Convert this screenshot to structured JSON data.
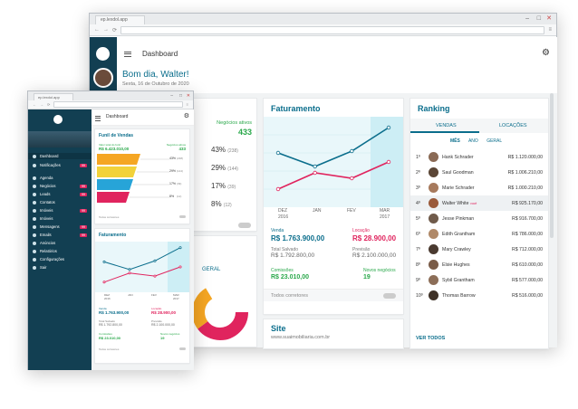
{
  "back_window": {
    "tab_label": "ep.lexdol.app",
    "header_title": "Dashboard",
    "greeting": "Bom dia, Walter!",
    "date": "Sexta, 16 de Outubro de 2020",
    "negocios": {
      "label": "Negócios ativos",
      "value": "433"
    },
    "funnel_rows": [
      {
        "pct": "43%",
        "count": "(238)"
      },
      {
        "pct": "29%",
        "count": "(144)"
      },
      {
        "pct": "17%",
        "count": "(39)"
      },
      {
        "pct": "8%",
        "count": "(12)"
      }
    ],
    "geral_tab": "GERAL",
    "faturamento": {
      "title": "Faturamento",
      "months": [
        "DEZ",
        "JAN",
        "FEV",
        "MAR"
      ],
      "years": [
        "2016",
        "",
        "",
        "2017"
      ],
      "venda_label": "Venda",
      "venda_value": "R$ 1.763.900,00",
      "locacao_label": "Locação",
      "locacao_value": "R$ 28.900,00",
      "total_label": "Total Salvado",
      "total_value": "R$ 1.792.800,00",
      "previsao_label": "Previsão",
      "previsao_value": "R$ 2.100.000,00",
      "comissoes_label": "Comissões",
      "comissoes_value": "R$ 23.010,00",
      "novos_label": "Novos negócios",
      "novos_value": "19",
      "corretores": "Todos corretores"
    },
    "site": {
      "title": "Site",
      "url": "www.suaimobiliaria.com.br"
    },
    "ranking": {
      "title": "Ranking",
      "tabs": [
        "VENDAS",
        "LOCAÇÕES"
      ],
      "periods": [
        "MÊS",
        "ANO",
        "GERAL"
      ],
      "rows": [
        {
          "pos": "1º",
          "name": "Hank Schrader",
          "value": "R$ 1.120.000,00"
        },
        {
          "pos": "2º",
          "name": "Saul Goodman",
          "value": "R$ 1.006.210,00"
        },
        {
          "pos": "3º",
          "name": "Marie Schrader",
          "value": "R$ 1.000.210,00"
        },
        {
          "pos": "4º",
          "name": "Walter White",
          "value": "R$ 925.170,00",
          "tag": "você"
        },
        {
          "pos": "5º",
          "name": "Jesse Pinkman",
          "value": "R$ 916.700,00"
        },
        {
          "pos": "6º",
          "name": "Edith Grantham",
          "value": "R$ 786.000,00"
        },
        {
          "pos": "7º",
          "name": "Mary Crawley",
          "value": "R$ 712.000,00"
        },
        {
          "pos": "8º",
          "name": "Elsie Hughes",
          "value": "R$ 610.000,00"
        },
        {
          "pos": "9º",
          "name": "Sybil Grantham",
          "value": "R$ 577.000,00"
        },
        {
          "pos": "10º",
          "name": "Thomas Barrow",
          "value": "R$ 516.000,00"
        }
      ],
      "ver_todos": "VER TODOS"
    }
  },
  "front_window": {
    "tab_label": "ep.lexdol.app",
    "header_title": "Dashboard",
    "menu": [
      {
        "label": "Dashboard"
      },
      {
        "label": "Notificações",
        "badge": "99"
      },
      {
        "label": "Agenda"
      },
      {
        "label": "Negócios",
        "badge": "99"
      },
      {
        "label": "Leads",
        "badge": "99"
      },
      {
        "label": "Contatos"
      },
      {
        "label": "Imóveis",
        "badge": "99"
      },
      {
        "label": "Imóveis"
      },
      {
        "label": "Mensagens",
        "badge": "99"
      },
      {
        "label": "Emails",
        "badge": "99"
      },
      {
        "label": "Anúncios"
      },
      {
        "label": "Relatórios"
      },
      {
        "label": "Configurações"
      },
      {
        "label": "Sair"
      }
    ],
    "funil": {
      "title": "Funil de Vendas",
      "total_label": "Valor total do funil",
      "total_value": "R$ 6.423.010,00",
      "negocios_label": "Negócios ativos",
      "negocios_value": "433",
      "rows": [
        {
          "pct": "43%",
          "count": "(238)"
        },
        {
          "pct": "29%",
          "count": "(144)"
        },
        {
          "pct": "17%",
          "count": "(39)"
        },
        {
          "pct": "8%",
          "count": "(12)"
        }
      ],
      "corretores": "Todos corretores"
    },
    "faturamento": {
      "title": "Faturamento",
      "months": [
        "DEZ",
        "JAN",
        "FEV",
        "MAR"
      ],
      "years": [
        "2016",
        "",
        "",
        "2017"
      ],
      "venda_label": "Venda",
      "venda_value": "R$ 1.763.900,00",
      "locacao_label": "Locação",
      "locacao_value": "R$ 28.900,00",
      "total_label": "Total Salvado",
      "total_value": "R$ 1.792.800,00",
      "previsao_label": "Previsão",
      "previsao_value": "R$ 2.100.000,00",
      "comissoes_label": "Comissões",
      "comissoes_value": "R$ 23.010,00",
      "novos_label": "Novos negócios",
      "novos_value": "19",
      "corretores": "Todos corretores"
    }
  },
  "chart_data": {
    "type": "line",
    "categories": [
      "DEZ",
      "JAN",
      "FEV",
      "MAR"
    ],
    "series": [
      {
        "name": "Venda",
        "values": [
          60,
          45,
          62,
          88
        ]
      },
      {
        "name": "Locação",
        "values": [
          20,
          38,
          32,
          50
        ]
      }
    ],
    "title": "Faturamento",
    "ylim": [
      0,
      100
    ],
    "colors": [
      "#0b6e8c",
      "#e0245e"
    ]
  }
}
